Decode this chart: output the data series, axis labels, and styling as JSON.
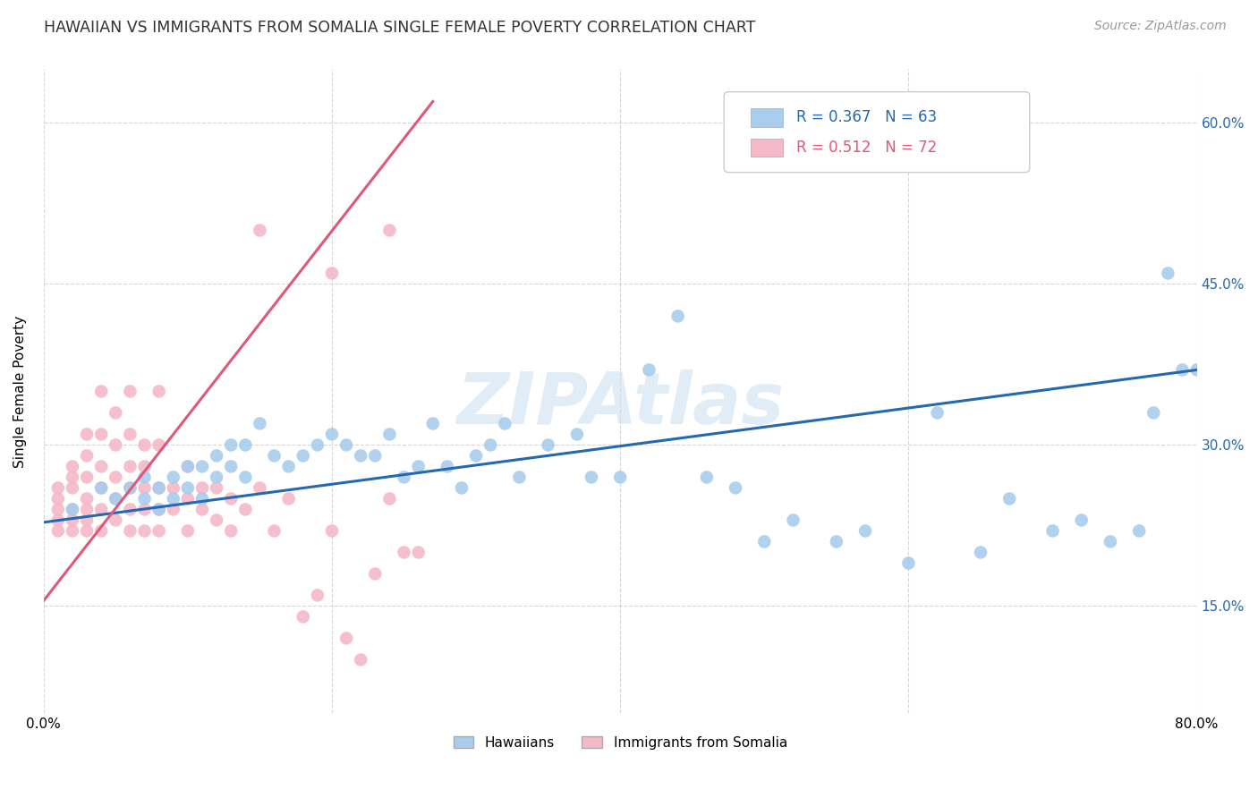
{
  "title": "HAWAIIAN VS IMMIGRANTS FROM SOMALIA SINGLE FEMALE POVERTY CORRELATION CHART",
  "source": "Source: ZipAtlas.com",
  "ylabel": "Single Female Poverty",
  "watermark": "ZIPAtlas",
  "legend_hawaiians": "Hawaiians",
  "legend_somalia": "Immigrants from Somalia",
  "r_hawaiians": "R = 0.367",
  "n_hawaiians": "N = 63",
  "r_somalia": "R = 0.512",
  "n_somalia": "N = 72",
  "xlim": [
    0.0,
    0.8
  ],
  "ylim": [
    0.05,
    0.65
  ],
  "yticks": [
    0.15,
    0.3,
    0.45,
    0.6
  ],
  "ytick_labels": [
    "15.0%",
    "30.0%",
    "45.0%",
    "60.0%"
  ],
  "xtick_labels": [
    "0.0%",
    "",
    "",
    "",
    "80.0%"
  ],
  "color_hawaiians": "#A8CDED",
  "color_somalia": "#F5B8C8",
  "color_line_hawaiians": "#2468B0",
  "color_line_somalia": "#E05878",
  "hawaiians_x": [
    0.02,
    0.04,
    0.05,
    0.06,
    0.07,
    0.07,
    0.08,
    0.08,
    0.09,
    0.09,
    0.1,
    0.1,
    0.11,
    0.11,
    0.12,
    0.12,
    0.13,
    0.13,
    0.14,
    0.14,
    0.15,
    0.16,
    0.17,
    0.18,
    0.19,
    0.2,
    0.21,
    0.22,
    0.23,
    0.24,
    0.25,
    0.26,
    0.27,
    0.28,
    0.29,
    0.3,
    0.31,
    0.32,
    0.33,
    0.35,
    0.37,
    0.38,
    0.4,
    0.42,
    0.44,
    0.46,
    0.48,
    0.5,
    0.52,
    0.55,
    0.57,
    0.6,
    0.62,
    0.65,
    0.67,
    0.7,
    0.72,
    0.74,
    0.76,
    0.77,
    0.78,
    0.79,
    0.8
  ],
  "hawaiians_y": [
    0.24,
    0.26,
    0.25,
    0.26,
    0.25,
    0.27,
    0.24,
    0.26,
    0.25,
    0.27,
    0.26,
    0.28,
    0.25,
    0.28,
    0.27,
    0.29,
    0.28,
    0.3,
    0.27,
    0.3,
    0.32,
    0.29,
    0.28,
    0.29,
    0.3,
    0.31,
    0.3,
    0.29,
    0.29,
    0.31,
    0.27,
    0.28,
    0.32,
    0.28,
    0.26,
    0.29,
    0.3,
    0.32,
    0.27,
    0.3,
    0.31,
    0.27,
    0.27,
    0.37,
    0.42,
    0.27,
    0.26,
    0.21,
    0.23,
    0.21,
    0.22,
    0.19,
    0.33,
    0.2,
    0.25,
    0.22,
    0.23,
    0.21,
    0.22,
    0.33,
    0.46,
    0.37,
    0.37
  ],
  "somalia_x": [
    0.01,
    0.01,
    0.01,
    0.01,
    0.01,
    0.02,
    0.02,
    0.02,
    0.02,
    0.02,
    0.02,
    0.03,
    0.03,
    0.03,
    0.03,
    0.03,
    0.03,
    0.03,
    0.04,
    0.04,
    0.04,
    0.04,
    0.04,
    0.04,
    0.05,
    0.05,
    0.05,
    0.05,
    0.05,
    0.06,
    0.06,
    0.06,
    0.06,
    0.06,
    0.06,
    0.07,
    0.07,
    0.07,
    0.07,
    0.07,
    0.08,
    0.08,
    0.08,
    0.08,
    0.08,
    0.09,
    0.09,
    0.1,
    0.1,
    0.1,
    0.11,
    0.11,
    0.12,
    0.12,
    0.13,
    0.13,
    0.14,
    0.15,
    0.15,
    0.16,
    0.17,
    0.18,
    0.19,
    0.2,
    0.2,
    0.21,
    0.22,
    0.23,
    0.24,
    0.24,
    0.25,
    0.26
  ],
  "somalia_y": [
    0.22,
    0.23,
    0.24,
    0.25,
    0.26,
    0.22,
    0.23,
    0.24,
    0.26,
    0.27,
    0.28,
    0.22,
    0.23,
    0.24,
    0.25,
    0.27,
    0.29,
    0.31,
    0.22,
    0.24,
    0.26,
    0.28,
    0.31,
    0.35,
    0.23,
    0.25,
    0.27,
    0.3,
    0.33,
    0.22,
    0.24,
    0.26,
    0.28,
    0.31,
    0.35,
    0.22,
    0.24,
    0.26,
    0.28,
    0.3,
    0.22,
    0.24,
    0.26,
    0.3,
    0.35,
    0.24,
    0.26,
    0.22,
    0.25,
    0.28,
    0.24,
    0.26,
    0.23,
    0.26,
    0.22,
    0.25,
    0.24,
    0.26,
    0.5,
    0.22,
    0.25,
    0.14,
    0.16,
    0.22,
    0.46,
    0.12,
    0.1,
    0.18,
    0.25,
    0.5,
    0.2,
    0.2
  ],
  "line_hawaiians_x0": 0.0,
  "line_hawaiians_y0": 0.228,
  "line_hawaiians_x1": 0.8,
  "line_hawaiians_y1": 0.37,
  "line_somalia_x0": 0.0,
  "line_somalia_y0": 0.155,
  "line_somalia_x1": 0.27,
  "line_somalia_y1": 0.62
}
